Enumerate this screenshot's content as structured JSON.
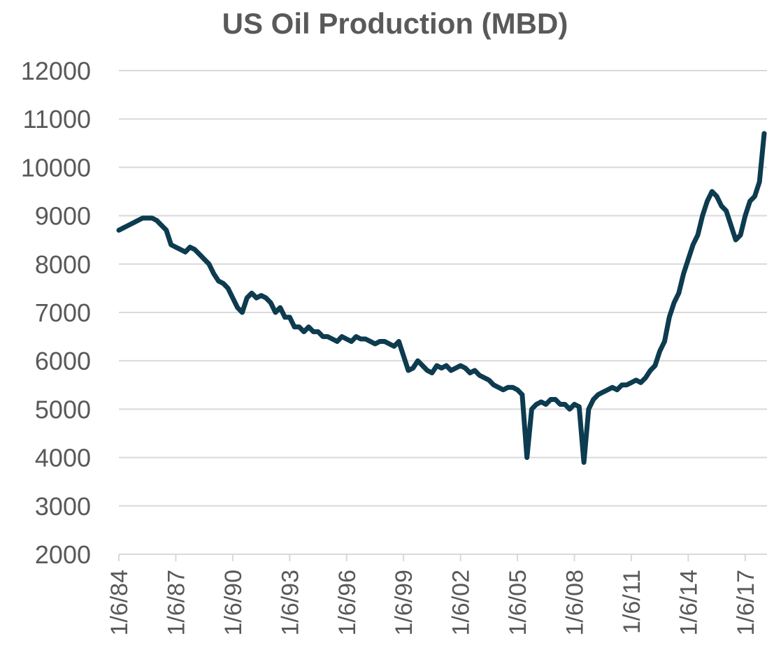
{
  "chart_data": {
    "type": "line",
    "title": "US Oil Production (MBD)",
    "categories": [
      "1/6/84",
      null,
      null,
      null,
      null,
      null,
      null,
      null,
      null,
      null,
      null,
      null,
      "1/6/87",
      null,
      null,
      null,
      null,
      null,
      null,
      null,
      null,
      null,
      null,
      null,
      "1/6/90",
      null,
      null,
      null,
      null,
      null,
      null,
      null,
      null,
      null,
      null,
      null,
      "1/6/93",
      null,
      null,
      null,
      null,
      null,
      null,
      null,
      null,
      null,
      null,
      null,
      "1/6/96",
      null,
      null,
      null,
      null,
      null,
      null,
      null,
      null,
      null,
      null,
      null,
      "1/6/99",
      null,
      null,
      null,
      null,
      null,
      null,
      null,
      null,
      null,
      null,
      null,
      "1/6/02",
      null,
      null,
      null,
      null,
      null,
      null,
      null,
      null,
      null,
      null,
      null,
      "1/6/05",
      null,
      null,
      null,
      null,
      null,
      null,
      null,
      null,
      null,
      null,
      null,
      "1/6/08",
      null,
      null,
      null,
      null,
      null,
      null,
      null,
      null,
      null,
      null,
      null,
      "1/6/11",
      null,
      null,
      null,
      null,
      null,
      null,
      null,
      null,
      null,
      null,
      null,
      "1/6/14",
      null,
      null,
      null,
      null,
      null,
      null,
      null,
      null,
      null,
      null,
      null,
      "1/6/17",
      null,
      null,
      null,
      null
    ],
    "series": [
      {
        "name": "US Oil Production",
        "color": "#0d3b4f",
        "values": [
          8700,
          8750,
          8800,
          8850,
          8900,
          8950,
          8950,
          8950,
          8900,
          8800,
          8700,
          8400,
          8350,
          8300,
          8250,
          8350,
          8300,
          8200,
          8100,
          8000,
          7800,
          7650,
          7600,
          7500,
          7300,
          7100,
          7000,
          7300,
          7400,
          7300,
          7350,
          7300,
          7200,
          7000,
          7100,
          6900,
          6900,
          6700,
          6700,
          6600,
          6700,
          6600,
          6600,
          6500,
          6500,
          6450,
          6400,
          6500,
          6450,
          6400,
          6500,
          6450,
          6450,
          6400,
          6350,
          6400,
          6400,
          6350,
          6300,
          6400,
          6100,
          5800,
          5850,
          6000,
          5900,
          5800,
          5750,
          5900,
          5850,
          5900,
          5800,
          5850,
          5900,
          5850,
          5750,
          5800,
          5700,
          5650,
          5600,
          5500,
          5450,
          5400,
          5450,
          5450,
          5400,
          5300,
          4000,
          5000,
          5100,
          5150,
          5100,
          5200,
          5200,
          5100,
          5100,
          5000,
          5100,
          5050,
          3900,
          5000,
          5200,
          5300,
          5350,
          5400,
          5450,
          5400,
          5500,
          5500,
          5550,
          5600,
          5550,
          5650,
          5800,
          5900,
          6200,
          6400,
          6900,
          7200,
          7400,
          7800,
          8100,
          8400,
          8600,
          9000,
          9300,
          9500,
          9400,
          9200,
          9100,
          8800,
          8500,
          8600,
          9000,
          9300,
          9400,
          9700,
          10700
        ]
      }
    ],
    "ylim": [
      2000,
      12000
    ],
    "yticks": [
      2000,
      3000,
      4000,
      5000,
      6000,
      7000,
      8000,
      9000,
      10000,
      11000,
      12000
    ],
    "grid": true
  }
}
